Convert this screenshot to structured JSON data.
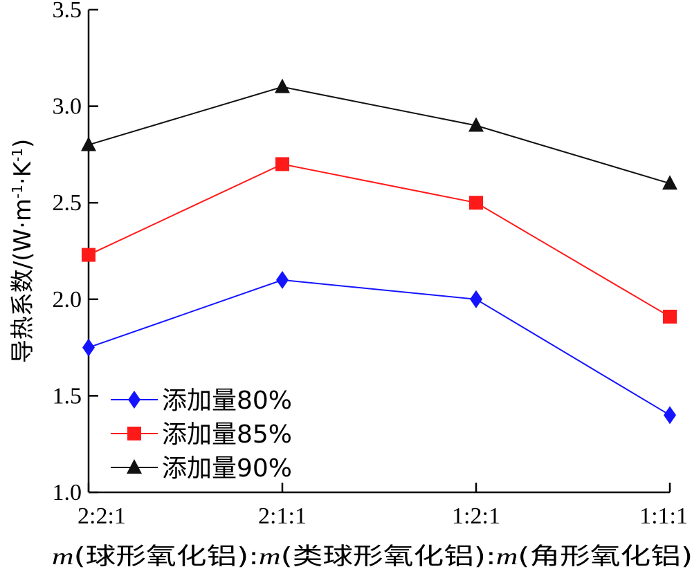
{
  "chart_data": {
    "type": "line",
    "categories": [
      "2:2:1",
      "2:1:1",
      "1:2:1",
      "1:1:1"
    ],
    "series": [
      {
        "name": "添加量80%",
        "values": [
          1.75,
          2.1,
          2.0,
          1.4
        ],
        "color": "#1414ff",
        "marker": "diamond"
      },
      {
        "name": "添加量85%",
        "values": [
          2.23,
          2.7,
          2.5,
          1.91
        ],
        "color": "#ff1a1a",
        "marker": "square"
      },
      {
        "name": "添加量90%",
        "values": [
          2.8,
          3.1,
          2.9,
          2.6
        ],
        "color": "#111111",
        "marker": "triangle"
      }
    ],
    "ylabel": "导热系数/(W·m-1·K-1)",
    "ylabel_parts": {
      "main": "导热系数/(W·m",
      "sup1": "-1",
      "mid": "·K",
      "sup2": "-1",
      "end": ")"
    },
    "xlabel": "m(球形氧化铝):m(类球形氧化铝):m(角形氧化铝)",
    "xlabel_parts": {
      "m1": "m",
      "t1": "(球形氧化铝)",
      "sep1": ":",
      "m2": "m",
      "t2": "(类球形氧化铝)",
      "sep2": ":",
      "m3": "m",
      "t3": "(角形氧化铝)"
    },
    "ylim": [
      1.0,
      3.5
    ],
    "yticks": [
      "1.0",
      "1.5",
      "2.0",
      "2.5",
      "3.0",
      "3.5"
    ],
    "grid": false,
    "legend_position": "bottom-left"
  }
}
